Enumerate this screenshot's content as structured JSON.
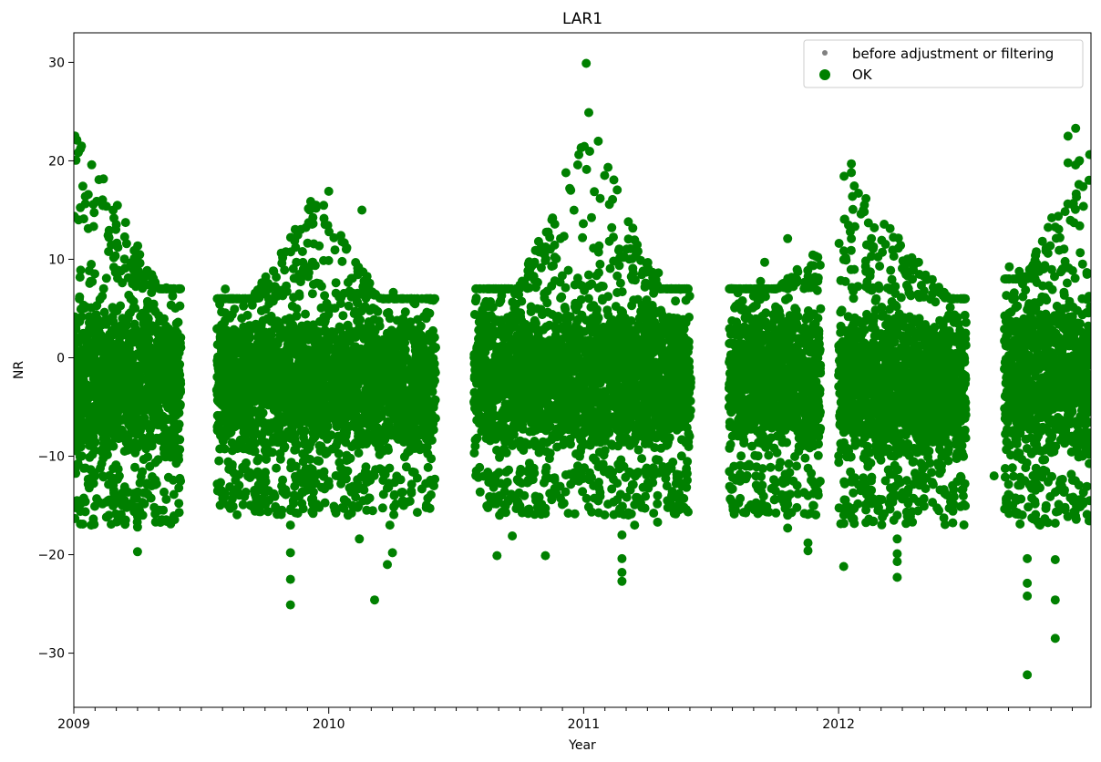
{
  "chart_data": {
    "type": "scatter",
    "title": "LAR1",
    "xlabel": "Year",
    "ylabel": "NR",
    "xlim": [
      2009.0,
      2012.99
    ],
    "ylim": [
      -35.5,
      33.0
    ],
    "x_ticks": [
      {
        "value": 2009,
        "label": "2009"
      },
      {
        "value": 2010,
        "label": "2010"
      },
      {
        "value": 2011,
        "label": "2011"
      },
      {
        "value": 2012,
        "label": "2012"
      }
    ],
    "y_ticks": [
      {
        "value": 30,
        "label": "30"
      },
      {
        "value": 20,
        "label": "20"
      },
      {
        "value": 10,
        "label": "10"
      },
      {
        "value": 0,
        "label": "0"
      },
      {
        "value": -10,
        "label": "−10"
      },
      {
        "value": -20,
        "label": "−20"
      },
      {
        "value": -30,
        "label": "−30"
      }
    ],
    "legend_position": "top-right",
    "series": [
      {
        "name": "before adjustment or filtering",
        "color": "#808080",
        "marker": "small-dot",
        "points": []
      },
      {
        "name": "OK",
        "color": "#008000",
        "marker": "dot",
        "clusters": [
          {
            "x_start": 2009.0,
            "x_end": 2009.42,
            "y_low": -12,
            "y_high": 7,
            "y_peak_start": 24.5,
            "y_peak_end": 2.5
          },
          {
            "x_start": 2009.56,
            "x_end": 2010.42,
            "y_low": -11,
            "y_high": 6,
            "y_peak_start": 3,
            "y_peak_end": 3,
            "y_peak_mid": 17,
            "peak_at": 2009.95
          },
          {
            "x_start": 2010.57,
            "x_end": 2011.42,
            "y_low": -11,
            "y_high": 7,
            "y_peak_start": 5.5,
            "y_peak_end": 4.5,
            "y_peak_mid": 25,
            "peak_at": 2011.02
          },
          {
            "x_start": 2011.57,
            "x_end": 2011.93,
            "y_low": -11,
            "y_high": 7,
            "y_peak_start": 2,
            "y_peak_end": 11.5
          },
          {
            "x_start": 2012.0,
            "x_end": 2012.5,
            "y_low": -12,
            "y_high": 6,
            "y_peak_start": 19.5,
            "y_peak_end": 4
          },
          {
            "x_start": 2012.65,
            "x_end": 2012.99,
            "y_low": -12,
            "y_high": 8,
            "y_peak_start": 4,
            "y_peak_end": 23
          }
        ],
        "outliers": [
          {
            "x": 2009.03,
            "y": 21.5
          },
          {
            "x": 2009.07,
            "y": 19.6
          },
          {
            "x": 2009.19,
            "y": -15.0
          },
          {
            "x": 2009.25,
            "y": -17.2
          },
          {
            "x": 2009.25,
            "y": -19.7
          },
          {
            "x": 2009.25,
            "y": -16.1
          },
          {
            "x": 2009.85,
            "y": -25.1
          },
          {
            "x": 2009.85,
            "y": -22.5
          },
          {
            "x": 2009.85,
            "y": -19.8
          },
          {
            "x": 2009.85,
            "y": -17.0
          },
          {
            "x": 2009.83,
            "y": -13.4
          },
          {
            "x": 2009.95,
            "y": 15.5
          },
          {
            "x": 2010.0,
            "y": 16.9
          },
          {
            "x": 2010.12,
            "y": -18.4
          },
          {
            "x": 2010.18,
            "y": -24.6
          },
          {
            "x": 2010.23,
            "y": -21.0
          },
          {
            "x": 2010.25,
            "y": -19.8
          },
          {
            "x": 2010.24,
            "y": -17.0
          },
          {
            "x": 2010.13,
            "y": 15.0
          },
          {
            "x": 2010.67,
            "y": 5.6
          },
          {
            "x": 2010.66,
            "y": -20.1
          },
          {
            "x": 2010.67,
            "y": -16.0
          },
          {
            "x": 2010.67,
            "y": -14.0
          },
          {
            "x": 2010.72,
            "y": -18.1
          },
          {
            "x": 2010.85,
            "y": -20.1
          },
          {
            "x": 2010.85,
            "y": -15.3
          },
          {
            "x": 2011.01,
            "y": 29.9
          },
          {
            "x": 2011.02,
            "y": 24.9
          },
          {
            "x": 2011.15,
            "y": -22.7
          },
          {
            "x": 2011.15,
            "y": -21.8
          },
          {
            "x": 2011.15,
            "y": -20.4
          },
          {
            "x": 2011.15,
            "y": -18.0
          },
          {
            "x": 2011.2,
            "y": -17.0
          },
          {
            "x": 2011.29,
            "y": -16.7
          },
          {
            "x": 2011.29,
            "y": -14.0
          },
          {
            "x": 2011.21,
            "y": -14.2
          },
          {
            "x": 2011.71,
            "y": 9.7
          },
          {
            "x": 2011.8,
            "y": -16.0
          },
          {
            "x": 2011.8,
            "y": -17.3
          },
          {
            "x": 2011.8,
            "y": 12.1
          },
          {
            "x": 2011.88,
            "y": -18.8
          },
          {
            "x": 2011.88,
            "y": -19.6
          },
          {
            "x": 2011.88,
            "y": -14.0
          },
          {
            "x": 2012.02,
            "y": -21.2
          },
          {
            "x": 2012.05,
            "y": 19.7
          },
          {
            "x": 2012.05,
            "y": 18.8
          },
          {
            "x": 2012.14,
            "y": 13.2
          },
          {
            "x": 2012.17,
            "y": -14.4
          },
          {
            "x": 2012.23,
            "y": -18.4
          },
          {
            "x": 2012.23,
            "y": -19.9
          },
          {
            "x": 2012.23,
            "y": -20.7
          },
          {
            "x": 2012.23,
            "y": -22.3
          },
          {
            "x": 2012.23,
            "y": -16.0
          },
          {
            "x": 2012.61,
            "y": -12.0
          },
          {
            "x": 2012.74,
            "y": -32.2
          },
          {
            "x": 2012.74,
            "y": -24.2
          },
          {
            "x": 2012.74,
            "y": -22.9
          },
          {
            "x": 2012.74,
            "y": -20.4
          },
          {
            "x": 2012.79,
            "y": -17.0
          },
          {
            "x": 2012.85,
            "y": -28.5
          },
          {
            "x": 2012.85,
            "y": -24.6
          },
          {
            "x": 2012.85,
            "y": -20.5
          },
          {
            "x": 2012.85,
            "y": -16.8
          },
          {
            "x": 2012.9,
            "y": 22.5
          },
          {
            "x": 2012.9,
            "y": 19.8
          },
          {
            "x": 2012.93,
            "y": 23.3
          }
        ]
      }
    ]
  }
}
